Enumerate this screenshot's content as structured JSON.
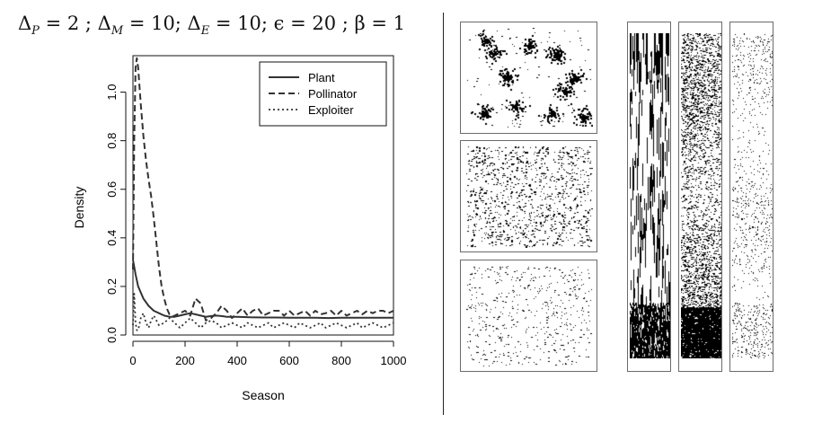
{
  "figure": {
    "title_parts": [
      "Δ",
      "P",
      " = 2 ; Δ",
      "M",
      " = 10; Δ",
      "E",
      " = 10; ϵ = 20 ; β = 1"
    ]
  },
  "chart_data": {
    "type": "line",
    "xlabel": "Season",
    "ylabel": "Density",
    "xlim": [
      0,
      1000
    ],
    "ylim": [
      0,
      1.15
    ],
    "xticks": [
      0,
      200,
      400,
      600,
      800,
      1000
    ],
    "yticks": [
      0.0,
      0.2,
      0.4,
      0.6,
      0.8,
      1.0
    ],
    "ytick_labels": [
      "0.0",
      "0.2",
      "0.4",
      "0.6",
      "0.8",
      "1.0"
    ],
    "grid": false,
    "legend_position": "top-right",
    "series": [
      {
        "name": "Plant",
        "line_style": "solid",
        "x": [
          0,
          10,
          20,
          40,
          60,
          80,
          100,
          120,
          140,
          160,
          180,
          200,
          220,
          240,
          260,
          280,
          300,
          320,
          340,
          360,
          380,
          400,
          450,
          500,
          550,
          600,
          650,
          700,
          750,
          800,
          850,
          900,
          950,
          1000
        ],
        "y": [
          0.31,
          0.25,
          0.2,
          0.15,
          0.12,
          0.1,
          0.09,
          0.08,
          0.075,
          0.075,
          0.08,
          0.085,
          0.09,
          0.085,
          0.08,
          0.075,
          0.078,
          0.08,
          0.078,
          0.075,
          0.075,
          0.075,
          0.073,
          0.072,
          0.072,
          0.071,
          0.071,
          0.071,
          0.07,
          0.071,
          0.071,
          0.071,
          0.071,
          0.071
        ]
      },
      {
        "name": "Pollinator",
        "line_style": "dashed",
        "x": [
          0,
          5,
          10,
          15,
          20,
          30,
          40,
          50,
          60,
          70,
          80,
          90,
          100,
          110,
          120,
          130,
          140,
          150,
          160,
          180,
          200,
          220,
          240,
          260,
          280,
          300,
          320,
          340,
          360,
          380,
          400,
          420,
          440,
          460,
          480,
          500,
          520,
          540,
          560,
          580,
          600,
          620,
          640,
          660,
          680,
          700,
          720,
          740,
          760,
          780,
          800,
          820,
          840,
          860,
          880,
          900,
          920,
          940,
          960,
          980,
          1000
        ],
        "y": [
          0.27,
          0.8,
          1.1,
          1.14,
          1.1,
          0.95,
          0.82,
          0.72,
          0.64,
          0.57,
          0.48,
          0.38,
          0.28,
          0.2,
          0.15,
          0.11,
          0.085,
          0.075,
          0.08,
          0.09,
          0.1,
          0.08,
          0.15,
          0.13,
          0.06,
          0.07,
          0.09,
          0.12,
          0.1,
          0.07,
          0.09,
          0.11,
          0.08,
          0.1,
          0.11,
          0.08,
          0.09,
          0.1,
          0.1,
          0.08,
          0.1,
          0.08,
          0.09,
          0.1,
          0.08,
          0.1,
          0.085,
          0.09,
          0.1,
          0.08,
          0.1,
          0.08,
          0.09,
          0.1,
          0.085,
          0.1,
          0.09,
          0.1,
          0.1,
          0.09,
          0.1
        ]
      },
      {
        "name": "Exploiter",
        "line_style": "dotted",
        "x": [
          0,
          5,
          10,
          15,
          20,
          30,
          40,
          50,
          60,
          70,
          80,
          90,
          100,
          120,
          140,
          160,
          180,
          200,
          220,
          240,
          260,
          280,
          300,
          320,
          340,
          360,
          380,
          400,
          420,
          440,
          460,
          480,
          500,
          520,
          540,
          560,
          580,
          600,
          620,
          640,
          660,
          680,
          700,
          720,
          740,
          760,
          780,
          800,
          820,
          840,
          860,
          880,
          900,
          920,
          940,
          960,
          980,
          1000
        ],
        "y": [
          0.04,
          0.17,
          0.05,
          0.02,
          0.02,
          0.07,
          0.09,
          0.05,
          0.03,
          0.06,
          0.08,
          0.06,
          0.04,
          0.05,
          0.07,
          0.05,
          0.03,
          0.05,
          0.07,
          0.05,
          0.03,
          0.05,
          0.06,
          0.05,
          0.03,
          0.04,
          0.05,
          0.04,
          0.03,
          0.05,
          0.04,
          0.03,
          0.04,
          0.05,
          0.03,
          0.04,
          0.05,
          0.04,
          0.03,
          0.05,
          0.04,
          0.03,
          0.04,
          0.05,
          0.03,
          0.04,
          0.05,
          0.04,
          0.03,
          0.04,
          0.05,
          0.03,
          0.04,
          0.05,
          0.04,
          0.03,
          0.04,
          0.05
        ]
      }
    ]
  },
  "panels": {
    "spatial_snapshots": [
      {
        "name": "pollinator-snapshot",
        "ink": "#000000"
      },
      {
        "name": "plant-snapshot",
        "ink": "#000000"
      },
      {
        "name": "exploiter-snapshot",
        "ink": "#000000"
      }
    ],
    "time_series_strips": [
      {
        "name": "plant-timeseries-strip",
        "ink": "#000000"
      },
      {
        "name": "pollinator-timeseries-strip",
        "ink": "#000000"
      },
      {
        "name": "exploiter-timeseries-strip",
        "ink": "#000000"
      }
    ]
  }
}
